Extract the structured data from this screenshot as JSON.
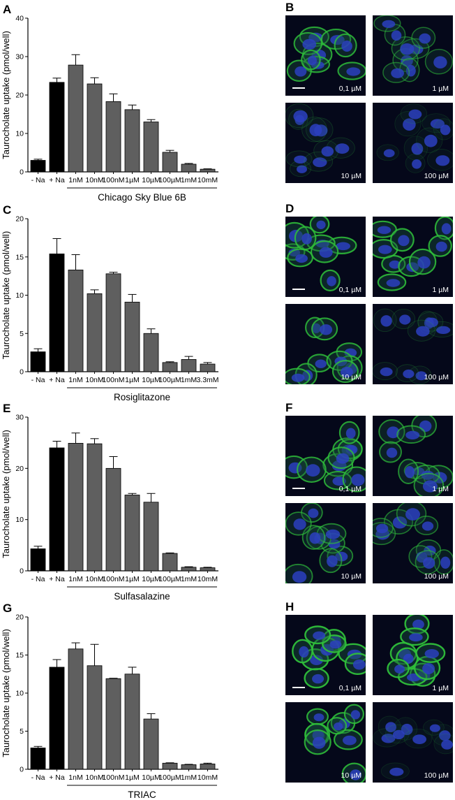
{
  "colors": {
    "control_bar": "#000000",
    "treated_bar": "#5f5f5f",
    "cell_membrane": "#2fbf3a",
    "nucleus": "#2b3fc0",
    "micro_background": "#05081a"
  },
  "ylabel": "Taurocholate uptake (pmol/well)",
  "panels": [
    {
      "chart_letter": "A",
      "micro_letter": "B",
      "drug": "Chicago Sky Blue 6B",
      "micro_labels": [
        "0,1 µM",
        "1 µM",
        "10 µM",
        "100 µM"
      ],
      "micro_intensity": [
        0.85,
        0.5,
        0.12,
        0.06
      ]
    },
    {
      "chart_letter": "C",
      "micro_letter": "D",
      "drug": "Rosiglitazone",
      "micro_labels": [
        "0,1 µM",
        "1 µM",
        "10 µM",
        "100 µM"
      ],
      "micro_intensity": [
        0.9,
        0.9,
        0.85,
        0.12
      ]
    },
    {
      "chart_letter": "E",
      "micro_letter": "F",
      "drug": "Sulfasalazine",
      "micro_labels": [
        "0,1 µM",
        "1 µM",
        "10 µM",
        "100 µM"
      ],
      "micro_intensity": [
        0.85,
        0.7,
        0.65,
        0.55
      ]
    },
    {
      "chart_letter": "G",
      "micro_letter": "H",
      "drug": "TRIAC",
      "micro_labels": [
        "0,1 µM",
        "1 µM",
        "10 µM",
        "100 µM"
      ],
      "micro_intensity": [
        1.0,
        1.0,
        0.9,
        0.05
      ]
    }
  ],
  "chart_data": [
    {
      "type": "bar",
      "categories": [
        "- Na",
        "+ Na",
        "1nM",
        "10nM",
        "100nM",
        "1µM",
        "10µM",
        "100µM",
        "1mM",
        "10mM"
      ],
      "values": [
        3.0,
        23.3,
        27.8,
        22.9,
        18.3,
        16.2,
        13.0,
        5.1,
        2.0,
        0.7
      ],
      "errors": [
        0.3,
        1.1,
        2.7,
        1.6,
        2.0,
        1.2,
        0.6,
        0.5,
        0.2,
        0.1
      ],
      "ylabel": "Taurocholate uptake (pmol/well)",
      "ylim": [
        0,
        40
      ],
      "yticks": [
        0,
        10,
        20,
        30,
        40
      ],
      "bracket_label": "Chicago Sky Blue 6B"
    },
    {
      "type": "bar",
      "categories": [
        "- Na",
        "+ Na",
        "1nM",
        "10nM",
        "100nM",
        "1µM",
        "10µM",
        "100µM",
        "1mM",
        "3.3mM"
      ],
      "values": [
        2.6,
        15.4,
        13.3,
        10.2,
        12.8,
        9.1,
        5.0,
        1.2,
        1.6,
        1.0
      ],
      "errors": [
        0.4,
        2.0,
        2.0,
        0.5,
        0.2,
        1.0,
        0.6,
        0.1,
        0.4,
        0.2
      ],
      "ylabel": "Taurocholate uptake (pmol/well)",
      "ylim": [
        0,
        20
      ],
      "yticks": [
        0,
        5,
        10,
        15,
        20
      ],
      "bracket_label": "Rosiglitazone"
    },
    {
      "type": "bar",
      "categories": [
        "- Na",
        "+ Na",
        "1nM",
        "10nM",
        "100nM",
        "1µM",
        "10µM",
        "100µM",
        "1mM",
        "10mM"
      ],
      "values": [
        4.3,
        24.0,
        24.9,
        24.8,
        20.0,
        14.8,
        13.4,
        3.4,
        0.7,
        0.6
      ],
      "errors": [
        0.5,
        1.3,
        2.0,
        1.0,
        2.3,
        0.3,
        1.7,
        0.1,
        0.1,
        0.1
      ],
      "ylabel": "Taurocholate uptake (pmol/well)",
      "ylim": [
        0,
        30
      ],
      "yticks": [
        0,
        10,
        20,
        30
      ],
      "bracket_label": "Sulfasalazine"
    },
    {
      "type": "bar",
      "categories": [
        "- Na",
        "+ Na",
        "1nM",
        "10nM",
        "100nM",
        "1µM",
        "10µM",
        "100µM",
        "1mM",
        "10mM"
      ],
      "values": [
        2.8,
        13.4,
        15.8,
        13.6,
        11.9,
        12.5,
        6.6,
        0.8,
        0.6,
        0.7
      ],
      "errors": [
        0.2,
        1.0,
        0.8,
        2.8,
        0.05,
        0.9,
        0.7,
        0.05,
        0.05,
        0.1
      ],
      "ylabel": "Taurocholate uptake (pmol/well)",
      "ylim": [
        0,
        20
      ],
      "yticks": [
        0,
        5,
        10,
        15,
        20
      ],
      "bracket_label": "TRIAC"
    }
  ]
}
